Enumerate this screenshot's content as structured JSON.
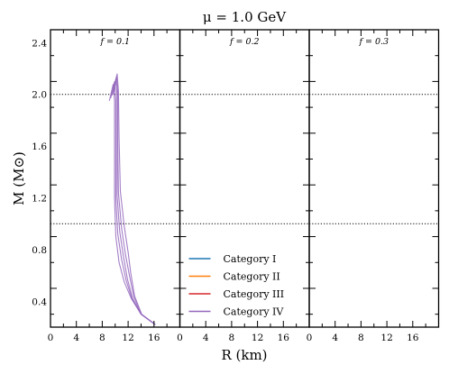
{
  "chart_data": {
    "type": "line",
    "title": "μ = 1.0 GeV",
    "xlabel": "R (km)",
    "ylabel": "M (M⊙)",
    "xlim": [
      0,
      20
    ],
    "ylim": [
      0.2,
      2.5
    ],
    "x_ticks": [
      "0",
      "4",
      "8",
      "12",
      "16"
    ],
    "y_ticks": [
      "0.4",
      "0.8",
      "1.2",
      "1.6",
      "2.0",
      "2.4"
    ],
    "reference_lines": [
      2.0,
      1.0
    ],
    "reference_style": "dotted",
    "legend": {
      "location": "lower-left of middle panel",
      "entries": [
        {
          "label": "Category I",
          "color": "#1f77b4"
        },
        {
          "label": "Category II",
          "color": "#ff7f0e"
        },
        {
          "label": "Category III",
          "color": "#d62728"
        },
        {
          "label": "Category IV",
          "color": "#9467bd"
        }
      ]
    },
    "panels": [
      {
        "label": "f = 0.1",
        "series": [
          {
            "category": "Category IV",
            "color": "#9467bd",
            "x": [
              16.2,
              14.0,
              12.5,
              11.4,
              10.6,
              10.1,
              9.9,
              9.9,
              9.9,
              9.7,
              9.1
            ],
            "y": [
              0.22,
              0.3,
              0.42,
              0.55,
              0.7,
              0.9,
              1.2,
              1.6,
              1.95,
              2.08,
              1.95
            ]
          },
          {
            "category": "Category IV",
            "color": "#9467bd",
            "x": [
              16.2,
              14.0,
              12.6,
              11.7,
              11.0,
              10.4,
              10.1,
              10.1,
              10.1,
              9.9,
              9.3
            ],
            "y": [
              0.22,
              0.3,
              0.42,
              0.56,
              0.72,
              0.92,
              1.2,
              1.6,
              1.97,
              2.1,
              1.97
            ]
          },
          {
            "category": "Category IV",
            "color": "#9467bd",
            "x": [
              16.2,
              14.0,
              12.7,
              11.9,
              11.3,
              10.7,
              10.3,
              10.3,
              10.3,
              10.1,
              9.5
            ],
            "y": [
              0.22,
              0.3,
              0.42,
              0.57,
              0.74,
              0.94,
              1.22,
              1.62,
              1.99,
              2.12,
              1.99
            ]
          },
          {
            "category": "Category IV",
            "color": "#9467bd",
            "x": [
              16.2,
              14.0,
              12.9,
              12.2,
              11.6,
              11.0,
              10.5,
              10.4,
              10.4,
              10.2,
              9.7
            ],
            "y": [
              0.22,
              0.3,
              0.43,
              0.6,
              0.76,
              0.96,
              1.24,
              1.64,
              2.01,
              2.14,
              2.0
            ]
          },
          {
            "category": "Category IV",
            "color": "#9467bd",
            "x": [
              16.2,
              14.1,
              13.0,
              12.4,
              12.0,
              11.4,
              10.8,
              10.6,
              10.5,
              10.3,
              9.8
            ],
            "y": [
              0.22,
              0.3,
              0.44,
              0.62,
              0.78,
              0.98,
              1.25,
              1.66,
              2.03,
              2.16,
              2.02
            ]
          }
        ]
      },
      {
        "label": "f = 0.2",
        "series": []
      },
      {
        "label": "f = 0.3",
        "series": []
      }
    ]
  }
}
